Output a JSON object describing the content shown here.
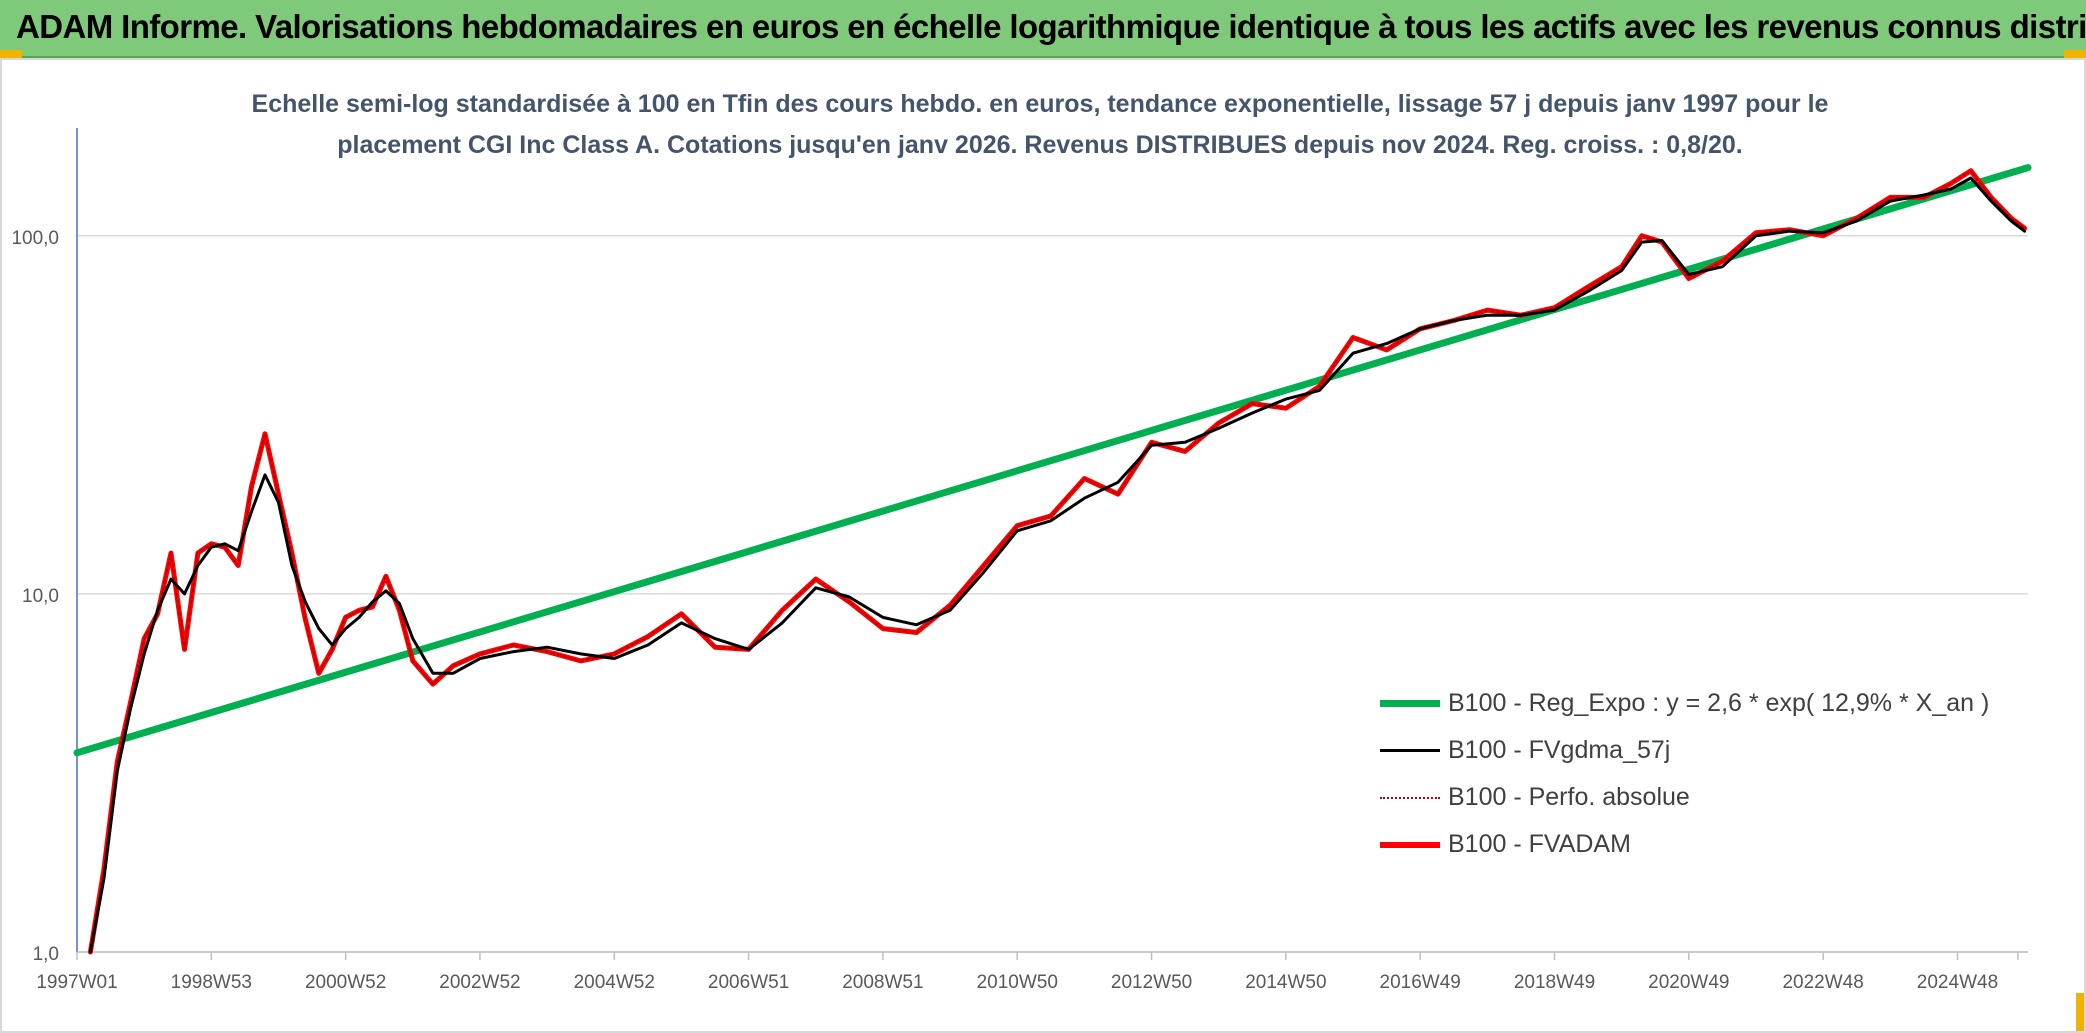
{
  "banner": {
    "title": "ADAM Informe. Valorisations hebdomadaires en euros en échelle logarithmique identique à tous les actifs avec les revenus connus distribués"
  },
  "colors": {
    "banner_bg": "#7fc97a",
    "regression": "#00b050",
    "smoothed": "#000000",
    "absolute": "#c00000",
    "fvadam": "#ff0000",
    "title_text": "#44546a"
  },
  "chart_data": {
    "type": "line",
    "title_lines": [
      "Echelle semi-log standardisée à 100 en Tfin des cours hebdo. en euros, tendance exponentielle, lissage 57 j depuis janv 1997 pour le",
      "placement CGI Inc Class A. Cotations jusqu'en janv 2026. Revenus DISTRIBUES depuis nov 2024. Reg. croiss. : 0,8/20."
    ],
    "y_scale": "log",
    "ylim": [
      1,
      200
    ],
    "y_ticks": [
      {
        "value": 1,
        "label": "1,0"
      },
      {
        "value": 10,
        "label": "10,0"
      },
      {
        "value": 100,
        "label": "100,0"
      }
    ],
    "xlim": [
      1997.0,
      2026.05
    ],
    "x_ticks": [
      {
        "value": 1997.0,
        "label": "1997W01"
      },
      {
        "value": 1999.0,
        "label": "1998W53"
      },
      {
        "value": 2001.0,
        "label": "2000W52"
      },
      {
        "value": 2003.0,
        "label": "2002W52"
      },
      {
        "value": 2005.0,
        "label": "2004W52"
      },
      {
        "value": 2007.0,
        "label": "2006W51"
      },
      {
        "value": 2009.0,
        "label": "2008W51"
      },
      {
        "value": 2011.0,
        "label": "2010W50"
      },
      {
        "value": 2013.0,
        "label": "2012W50"
      },
      {
        "value": 2015.0,
        "label": "2014W50"
      },
      {
        "value": 2017.0,
        "label": "2016W49"
      },
      {
        "value": 2019.0,
        "label": "2018W49"
      },
      {
        "value": 2021.0,
        "label": "2020W49"
      },
      {
        "value": 2023.0,
        "label": "2022W48"
      },
      {
        "value": 2025.0,
        "label": "2024W48"
      }
    ],
    "grid": true,
    "legend_position": "bottom-right",
    "series": [
      {
        "name": "B100 - Reg_Expo : y = 2,6 * exp( 12,9% *  X_an )",
        "style": "regression",
        "x": [
          1997.0,
          2026.05
        ],
        "y": [
          3.6,
          155
        ]
      },
      {
        "name": "B100 - FVgdma_57j",
        "style": "smoothed",
        "x": [
          1997.2,
          1997.4,
          1997.6,
          1997.8,
          1998.0,
          1998.2,
          1998.4,
          1998.6,
          1998.8,
          1999.0,
          1999.2,
          1999.4,
          1999.6,
          1999.8,
          2000.0,
          2000.2,
          2000.4,
          2000.6,
          2000.8,
          2001.0,
          2001.2,
          2001.4,
          2001.6,
          2001.8,
          2002.0,
          2002.3,
          2002.6,
          2003.0,
          2003.5,
          2004.0,
          2004.5,
          2005.0,
          2005.5,
          2006.0,
          2006.5,
          2007.0,
          2007.5,
          2008.0,
          2008.5,
          2009.0,
          2009.5,
          2010.0,
          2010.5,
          2011.0,
          2011.5,
          2012.0,
          2012.5,
          2013.0,
          2013.5,
          2014.0,
          2014.5,
          2015.0,
          2015.5,
          2016.0,
          2016.5,
          2017.0,
          2017.5,
          2018.0,
          2018.5,
          2019.0,
          2019.5,
          2020.0,
          2020.3,
          2020.6,
          2021.0,
          2021.5,
          2022.0,
          2022.5,
          2023.0,
          2023.5,
          2024.0,
          2024.5,
          2024.9,
          2025.2,
          2025.5,
          2025.8,
          2026.0
        ],
        "y": [
          1.0,
          1.6,
          3.2,
          4.8,
          6.8,
          9.0,
          11.0,
          10.0,
          12.0,
          13.5,
          13.8,
          13.2,
          17.0,
          21.5,
          18.0,
          12.0,
          9.5,
          8.0,
          7.2,
          8.0,
          8.6,
          9.5,
          10.2,
          9.4,
          7.5,
          6.0,
          6.0,
          6.6,
          6.9,
          7.1,
          6.8,
          6.6,
          7.2,
          8.3,
          7.5,
          7.0,
          8.3,
          10.4,
          9.8,
          8.6,
          8.2,
          9.0,
          11.5,
          15.0,
          16.0,
          18.5,
          20.5,
          26.0,
          26.5,
          29.0,
          32.0,
          35.0,
          37.0,
          47.0,
          50.0,
          55.0,
          58.0,
          60.0,
          60.0,
          62.0,
          70.0,
          80.0,
          96.0,
          97.0,
          78.0,
          82.0,
          100.0,
          103.0,
          102.0,
          110.0,
          125.0,
          130.0,
          135.0,
          145.0,
          125.0,
          110.0,
          103.0
        ]
      },
      {
        "name": "B100 - Perfo. absolue",
        "style": "absolute",
        "x": [
          1997.2,
          1997.4,
          1997.6,
          1997.8,
          1998.0,
          1998.2,
          1998.4,
          1998.6,
          1998.8,
          1999.0,
          1999.2,
          1999.4,
          1999.6,
          1999.8,
          2000.0,
          2000.2,
          2000.4,
          2000.6,
          2000.8,
          2001.0,
          2001.2,
          2001.4,
          2001.6,
          2001.8,
          2002.0,
          2002.3,
          2002.6,
          2003.0,
          2003.5,
          2004.0,
          2004.5,
          2005.0,
          2005.5,
          2006.0,
          2006.5,
          2007.0,
          2007.5,
          2008.0,
          2008.5,
          2009.0,
          2009.5,
          2010.0,
          2010.5,
          2011.0,
          2011.5,
          2012.0,
          2012.5,
          2013.0,
          2013.5,
          2014.0,
          2014.5,
          2015.0,
          2015.5,
          2016.0,
          2016.5,
          2017.0,
          2017.5,
          2018.0,
          2018.5,
          2019.0,
          2019.5,
          2020.0,
          2020.3,
          2020.6,
          2021.0,
          2021.5,
          2022.0,
          2022.5,
          2023.0,
          2023.5,
          2024.0,
          2024.5,
          2024.9,
          2025.2,
          2025.5,
          2025.8,
          2026.0
        ],
        "y": [
          1.0,
          1.7,
          3.4,
          5.0,
          7.5,
          8.8,
          13.0,
          7.0,
          13.0,
          13.8,
          13.5,
          12.0,
          20.0,
          28.0,
          19.0,
          13.0,
          8.5,
          6.0,
          7.0,
          8.6,
          9.0,
          9.2,
          11.2,
          9.0,
          6.5,
          5.6,
          6.3,
          6.8,
          7.2,
          6.9,
          6.5,
          6.8,
          7.6,
          8.8,
          7.1,
          7.0,
          9.0,
          11.0,
          9.5,
          8.0,
          7.8,
          9.3,
          12.0,
          15.5,
          16.5,
          21.0,
          19.0,
          26.5,
          25.0,
          30.0,
          34.0,
          33.0,
          38.0,
          52.0,
          48.0,
          55.0,
          58.0,
          62.0,
          60.0,
          63.0,
          72.0,
          82.0,
          100.0,
          96.0,
          76.0,
          85.0,
          102.0,
          104.0,
          100.0,
          112.0,
          128.0,
          128.0,
          140.0,
          152.0,
          128.0,
          112.0,
          105.0
        ]
      },
      {
        "name": "B100 - FVADAM",
        "style": "fvadam",
        "x": [
          1997.2,
          1997.4,
          1997.6,
          1997.8,
          1998.0,
          1998.2,
          1998.4,
          1998.6,
          1998.8,
          1999.0,
          1999.2,
          1999.4,
          1999.6,
          1999.8,
          2000.0,
          2000.2,
          2000.4,
          2000.6,
          2000.8,
          2001.0,
          2001.2,
          2001.4,
          2001.6,
          2001.8,
          2002.0,
          2002.3,
          2002.6,
          2003.0,
          2003.5,
          2004.0,
          2004.5,
          2005.0,
          2005.5,
          2006.0,
          2006.5,
          2007.0,
          2007.5,
          2008.0,
          2008.5,
          2009.0,
          2009.5,
          2010.0,
          2010.5,
          2011.0,
          2011.5,
          2012.0,
          2012.5,
          2013.0,
          2013.5,
          2014.0,
          2014.5,
          2015.0,
          2015.5,
          2016.0,
          2016.5,
          2017.0,
          2017.5,
          2018.0,
          2018.5,
          2019.0,
          2019.5,
          2020.0,
          2020.3,
          2020.6,
          2021.0,
          2021.5,
          2022.0,
          2022.5,
          2023.0,
          2023.5,
          2024.0,
          2024.5,
          2024.9,
          2025.2,
          2025.5,
          2025.8,
          2026.0
        ],
        "y": [
          1.0,
          1.7,
          3.4,
          5.0,
          7.5,
          8.8,
          13.0,
          7.0,
          13.0,
          13.8,
          13.5,
          12.0,
          20.0,
          28.0,
          19.0,
          13.0,
          8.5,
          6.0,
          7.0,
          8.6,
          9.0,
          9.2,
          11.2,
          9.0,
          6.5,
          5.6,
          6.3,
          6.8,
          7.2,
          6.9,
          6.5,
          6.8,
          7.6,
          8.8,
          7.1,
          7.0,
          9.0,
          11.0,
          9.5,
          8.0,
          7.8,
          9.3,
          12.0,
          15.5,
          16.5,
          21.0,
          19.0,
          26.5,
          25.0,
          30.0,
          34.0,
          33.0,
          38.0,
          52.0,
          48.0,
          55.0,
          58.0,
          62.0,
          60.0,
          63.0,
          72.0,
          82.0,
          100.0,
          96.0,
          76.0,
          85.0,
          102.0,
          104.0,
          100.0,
          112.0,
          128.0,
          128.0,
          140.0,
          152.0,
          128.0,
          112.0,
          105.0
        ]
      }
    ]
  }
}
